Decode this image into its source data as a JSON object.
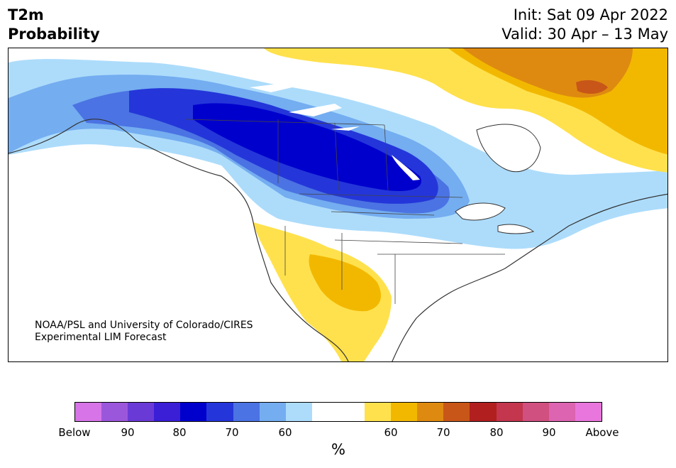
{
  "title": {
    "left_line1": "T2m",
    "left_line2": "Probability",
    "right_line1": "Init: Sat 09 Apr 2022",
    "right_line2": "Valid: 30 Apr – 13 May"
  },
  "credit": {
    "line1": "NOAA/PSL and University of Colorado/CIRES",
    "line2": "Experimental LIM Forecast"
  },
  "colorbar": {
    "unit": "%",
    "colors": [
      "#d674e8",
      "#9b57dc",
      "#6a3ad6",
      "#3a1fd6",
      "#0000cd",
      "#2436d9",
      "#4b73e3",
      "#74adf0",
      "#addcfb",
      "#ffffff",
      "#ffffff",
      "#ffe14d",
      "#f2b800",
      "#de8a10",
      "#c85618",
      "#b11f1f",
      "#c3364e",
      "#d05080",
      "#dc64b0",
      "#e876dc"
    ],
    "tick_labels": [
      "Below",
      "90",
      "80",
      "70",
      "60",
      "60",
      "70",
      "80",
      "90",
      "Above"
    ]
  }
}
